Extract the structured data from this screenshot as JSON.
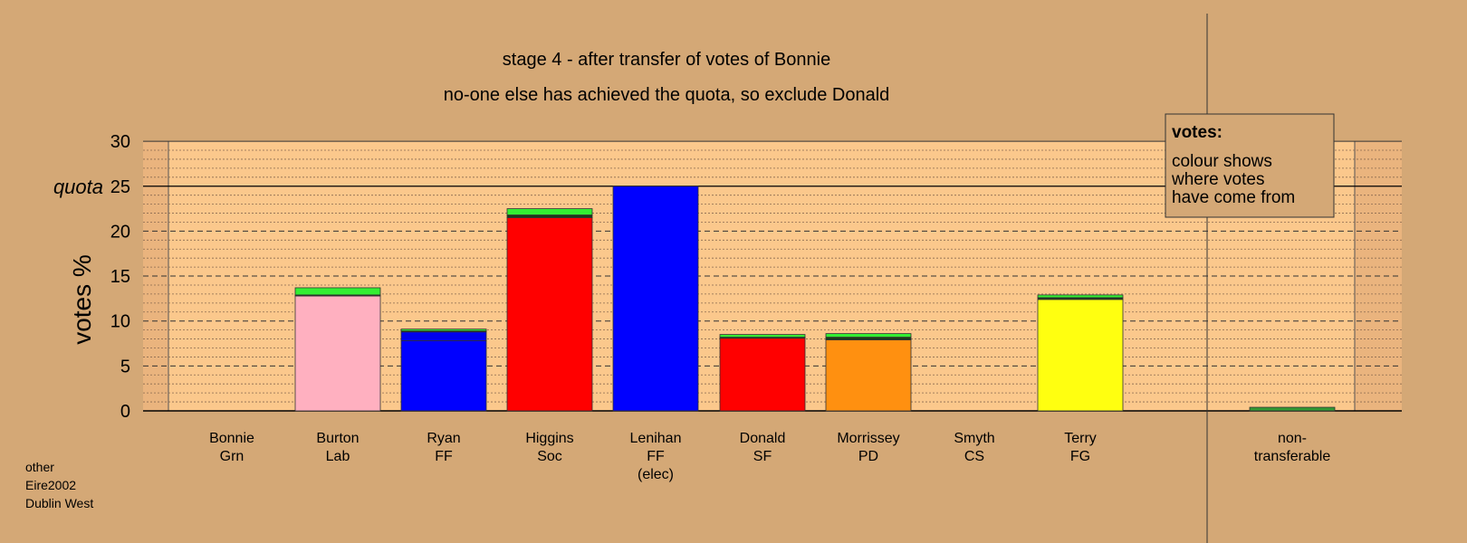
{
  "chart_data": {
    "type": "bar",
    "title": "stage 4 - after transfer of votes of Bonnie",
    "subtitle": "no-one else has achieved the quota, so exclude Donald",
    "ylabel": "votes %",
    "ylim": [
      0,
      30
    ],
    "yticks": [
      0,
      5,
      10,
      15,
      20,
      25,
      30
    ],
    "quota": 25,
    "quota_label": "quota",
    "grid": true,
    "categories": [
      {
        "lines": [
          "Bonnie",
          "Grn"
        ]
      },
      {
        "lines": [
          "Burton",
          "Lab"
        ]
      },
      {
        "lines": [
          "Ryan",
          "FF"
        ]
      },
      {
        "lines": [
          "Higgins",
          "Soc"
        ]
      },
      {
        "lines": [
          "Lenihan",
          "FF",
          "(elec)"
        ]
      },
      {
        "lines": [
          "Donald",
          "SF"
        ]
      },
      {
        "lines": [
          "Morrissey",
          "PD"
        ]
      },
      {
        "lines": [
          "Smyth",
          "CS"
        ]
      },
      {
        "lines": [
          "Terry",
          "FG"
        ]
      },
      {
        "lines": [
          "non-",
          "transferable"
        ]
      }
    ],
    "bars": [
      {
        "segments": []
      },
      {
        "segments": [
          {
            "from": "Lab",
            "value": 12.8,
            "color": "#ffb0c0"
          },
          {
            "from": "other",
            "value": 0.1,
            "color": "#1a3a1a"
          },
          {
            "from": "Grn",
            "value": 0.8,
            "color": "#33ee33"
          }
        ]
      },
      {
        "segments": [
          {
            "from": "FF",
            "value": 7.8,
            "color": "#0000ff"
          },
          {
            "from": "FF (surplus)",
            "value": 1.0,
            "color": "#0000ee"
          },
          {
            "from": "other",
            "value": 0.1,
            "color": "#1a3a1a"
          },
          {
            "from": "Grn",
            "value": 0.2,
            "color": "#33ee33"
          }
        ]
      },
      {
        "segments": [
          {
            "from": "Soc",
            "value": 21.5,
            "color": "#ff0000"
          },
          {
            "from": "other",
            "value": 0.3,
            "color": "#1a3a1a"
          },
          {
            "from": "Grn",
            "value": 0.7,
            "color": "#33ee33"
          }
        ]
      },
      {
        "segments": [
          {
            "from": "FF",
            "value": 25.0,
            "color": "#0000ff"
          }
        ]
      },
      {
        "segments": [
          {
            "from": "SF",
            "value": 8.1,
            "color": "#ff0000"
          },
          {
            "from": "other",
            "value": 0.1,
            "color": "#1a3a1a"
          },
          {
            "from": "Grn",
            "value": 0.3,
            "color": "#33ee33"
          }
        ]
      },
      {
        "segments": [
          {
            "from": "PD",
            "value": 7.9,
            "color": "#ff9010"
          },
          {
            "from": "other",
            "value": 0.3,
            "color": "#1a3a1a"
          },
          {
            "from": "Grn",
            "value": 0.4,
            "color": "#33ee33"
          }
        ]
      },
      {
        "segments": []
      },
      {
        "segments": [
          {
            "from": "FG",
            "value": 12.4,
            "color": "#ffff10"
          },
          {
            "from": "other",
            "value": 0.2,
            "color": "#1a3a1a"
          },
          {
            "from": "Grn",
            "value": 0.3,
            "color": "#33ee33"
          }
        ]
      },
      {
        "segments": [
          {
            "from": "Grn",
            "value": 0.4,
            "color": "#339933"
          }
        ]
      }
    ],
    "colors": {
      "page_background": "#d4a876",
      "plot_background": "#fbc88c",
      "legend_background": "#d4a876"
    }
  },
  "legend": {
    "heading": "votes:",
    "lines": [
      "colour shows",
      "where votes",
      "have come from"
    ]
  },
  "footnote": {
    "lines": [
      "other",
      "Eire2002",
      "Dublin West"
    ]
  }
}
